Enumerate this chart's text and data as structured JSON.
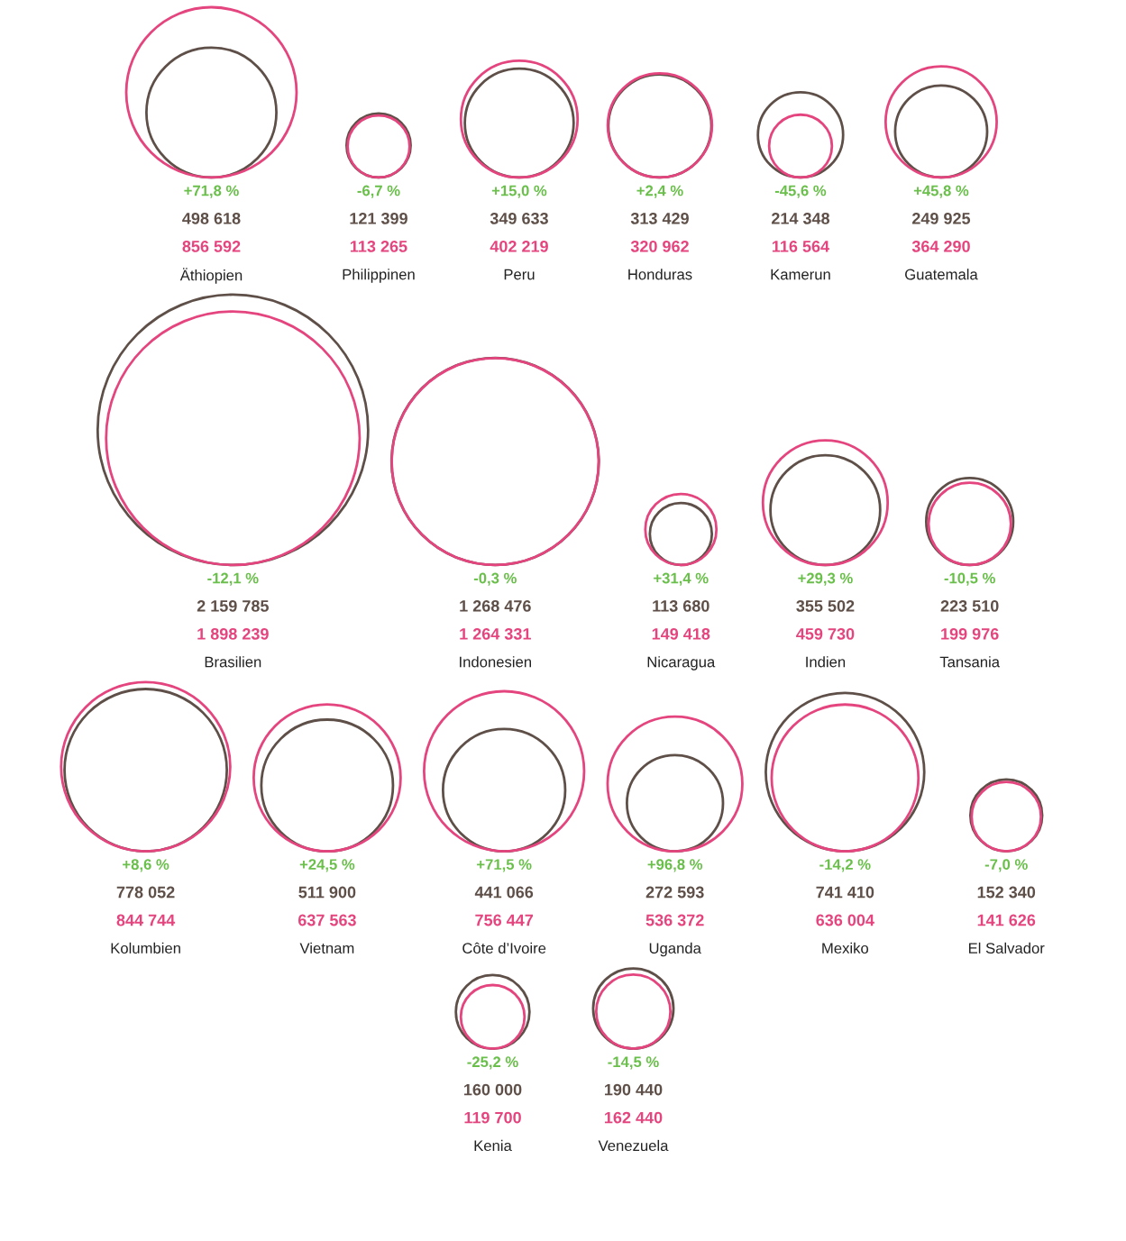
{
  "chart_data": {
    "type": "other",
    "categories": [
      "Äthiopien",
      "Philippinen",
      "Peru",
      "Honduras",
      "Kamerun",
      "Guatemala",
      "Brasilien",
      "Indonesien",
      "Nicaragua",
      "Indien",
      "Tansania",
      "Kolumbien",
      "Vietnam",
      "Côte d’Ivoire",
      "Uganda",
      "Mexiko",
      "El Salvador",
      "Kenia",
      "Venezuela"
    ],
    "series": [
      {
        "color": "#5e4f48",
        "values": [
          498618,
          121399,
          349633,
          313429,
          214348,
          249925,
          2159785,
          1268476,
          113680,
          355502,
          223510,
          778052,
          511900,
          441066,
          272593,
          741410,
          152340,
          160000,
          190440
        ],
        "value_labels": [
          "498 618",
          "121 399",
          "349 633",
          "313 429",
          "214 348",
          "249 925",
          "2 159 785",
          "1 268 476",
          "113 680",
          "355 502",
          "223 510",
          "778 052",
          "511 900",
          "441 066",
          "272 593",
          "741 410",
          "152 340",
          "160 000",
          "190 440"
        ]
      },
      {
        "color": "#e5457e",
        "values": [
          856592,
          113265,
          402219,
          320962,
          116564,
          364290,
          1898239,
          1264331,
          149418,
          459730,
          199976,
          844744,
          637563,
          756447,
          536372,
          636004,
          141626,
          119700,
          162440
        ],
        "value_labels": [
          "856 592",
          "113 265",
          "402 219",
          "320 962",
          "116 564",
          "364 290",
          "1 898 239",
          "1 264 331",
          "149 418",
          "459 730",
          "199 976",
          "844 744",
          "637 563",
          "756 447",
          "536 372",
          "636 004",
          "141 626",
          "119 700",
          "162 440"
        ]
      }
    ],
    "annotations": [
      "+71,8 %",
      "-6,7 %",
      "+15,0 %",
      "+2,4 %",
      "-45,6 %",
      "+45,8 %",
      "-12,1 %",
      "-0,3 %",
      "+31,4 %",
      "+29,3 %",
      "-10,5 %",
      "+8,6 %",
      "+24,5 %",
      "+71,5 %",
      "+96,8 %",
      "-14,2 %",
      "-7,0 %",
      "-25,2 %",
      "-14,5 %"
    ]
  }
}
